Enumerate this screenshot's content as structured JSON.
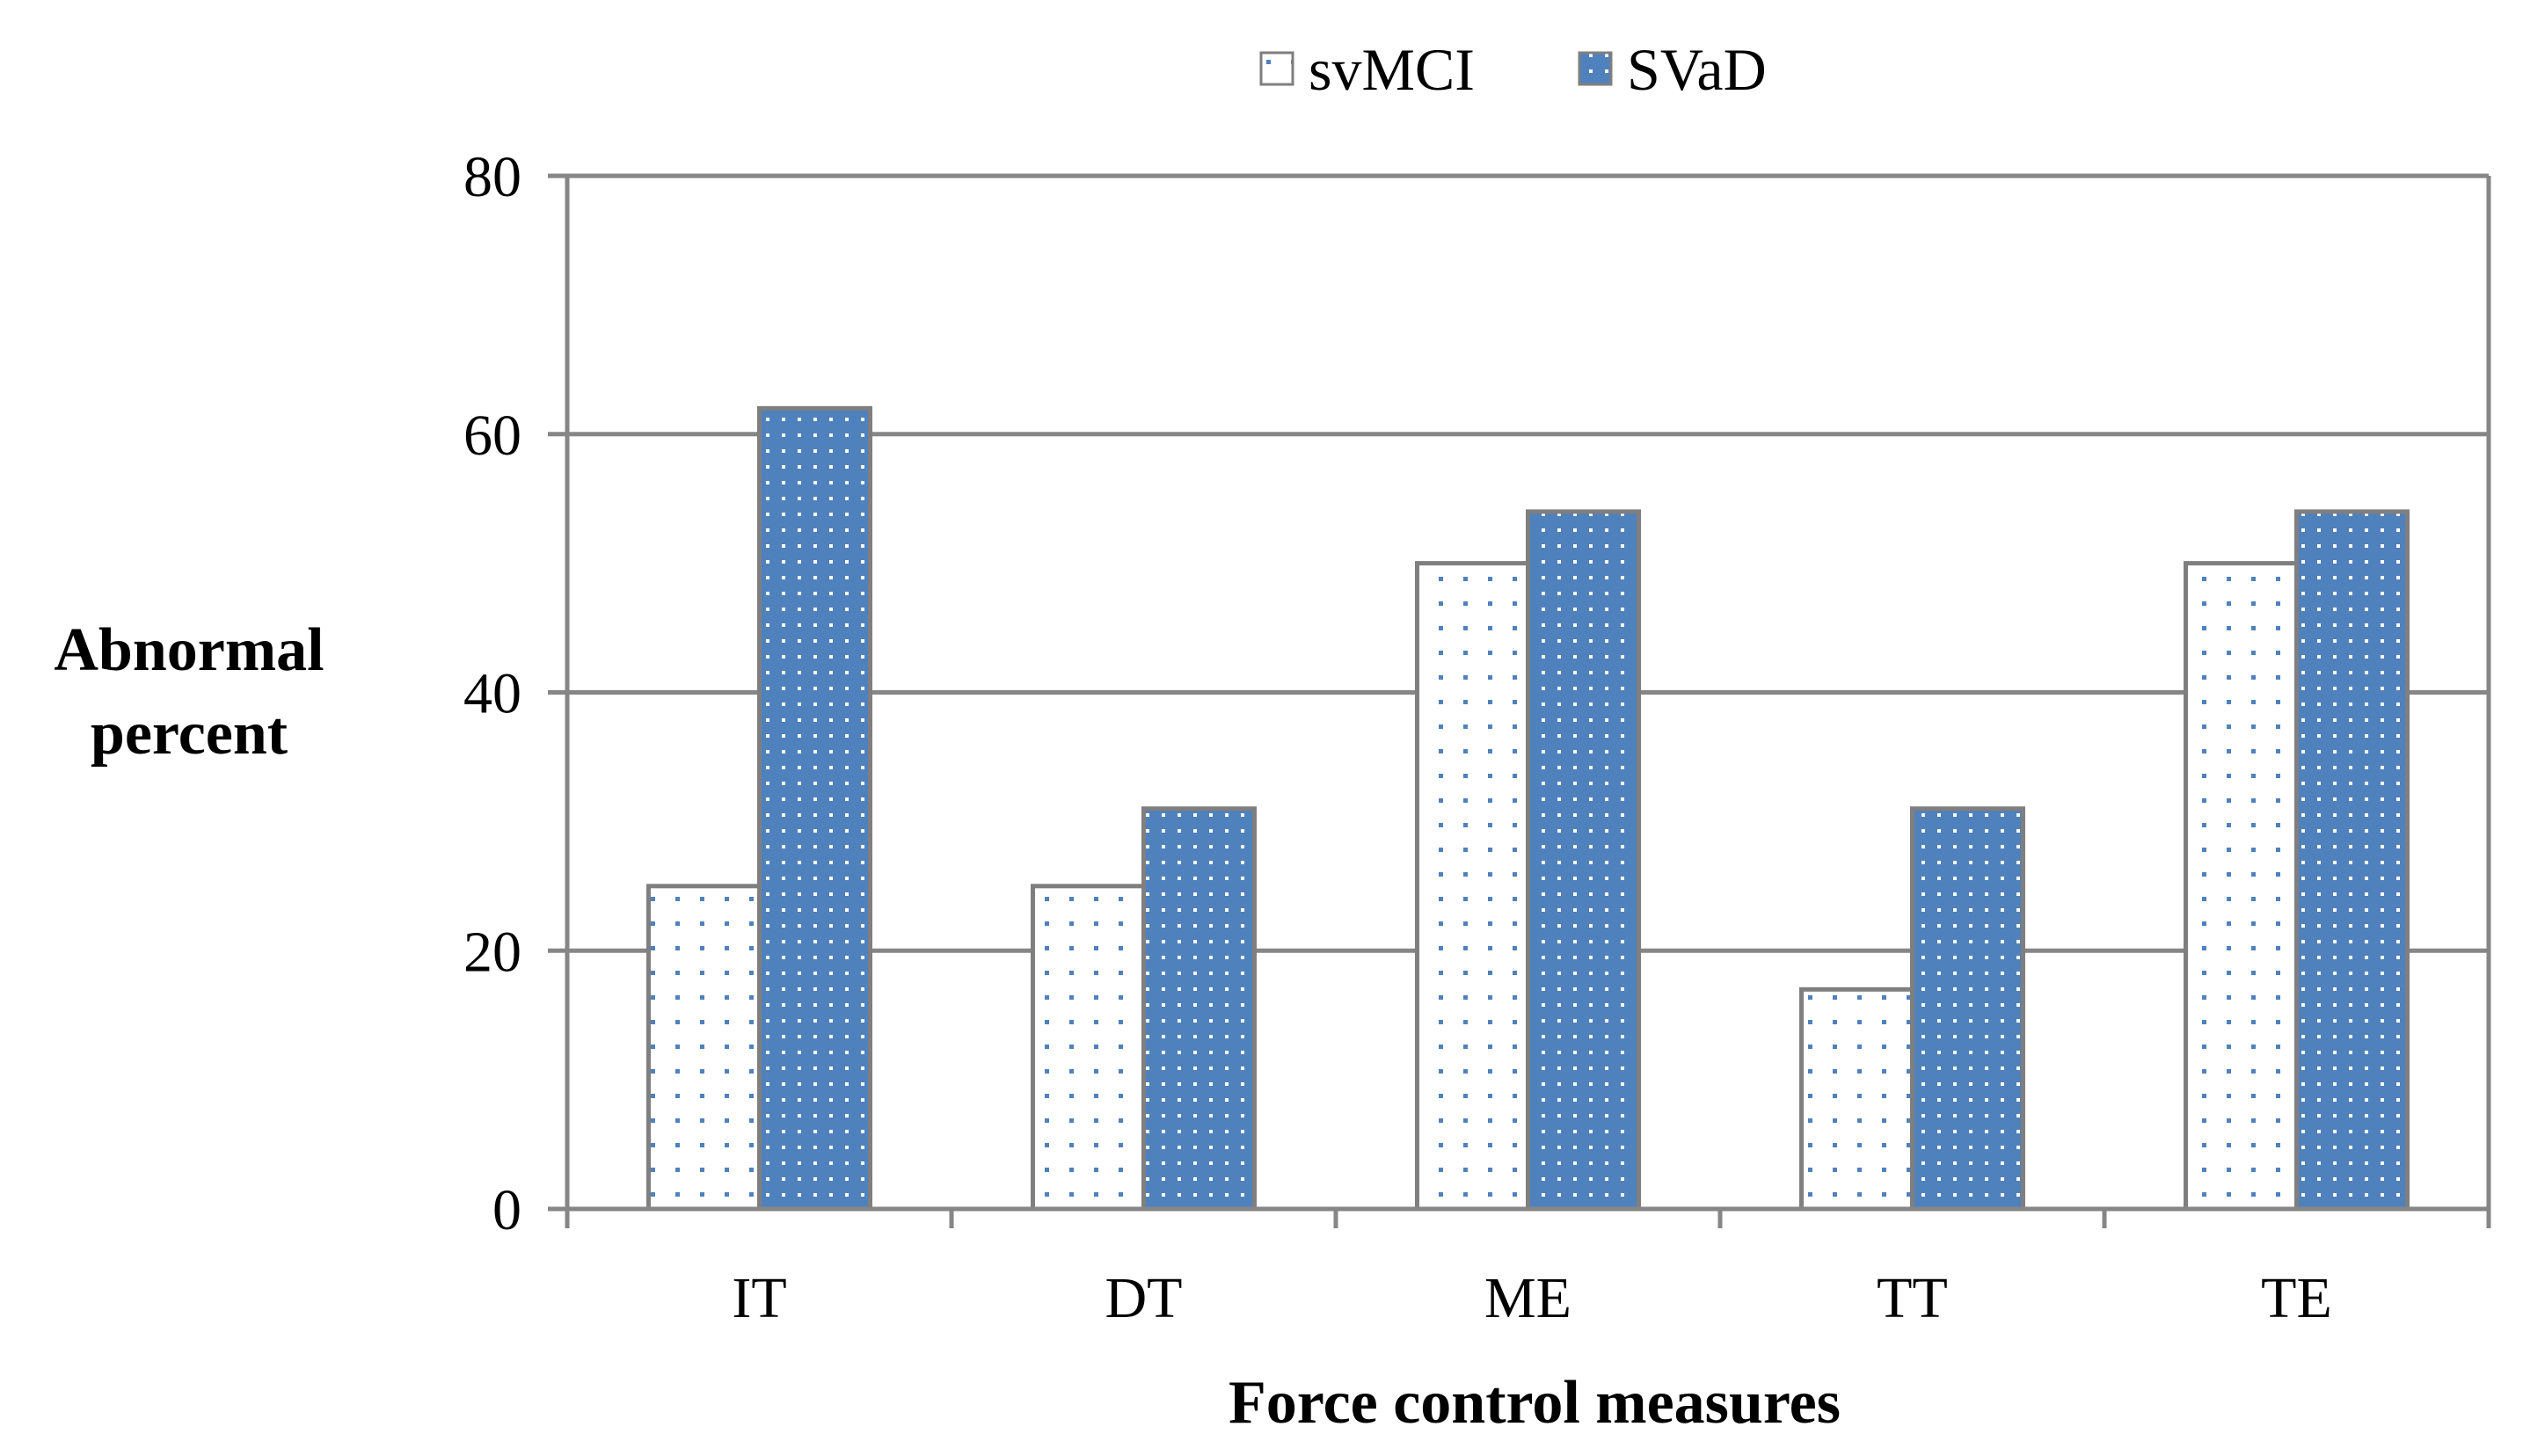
{
  "chart_data": {
    "type": "bar",
    "categories": [
      "IT",
      "DT",
      "ME",
      "TT",
      "TE"
    ],
    "series": [
      {
        "name": "svMCI",
        "values": [
          25,
          25,
          50,
          17,
          50
        ],
        "fill": "#ffffff",
        "dot": "#4f81bd"
      },
      {
        "name": "SVaD",
        "values": [
          62,
          31,
          54,
          31,
          54
        ],
        "fill": "#4f81bd",
        "dot": "#ffffff"
      }
    ],
    "title": "",
    "xlabel": "Force control measures",
    "ylabel": [
      "Abnormal",
      "percent"
    ],
    "ylim": [
      0,
      80
    ],
    "yticks": [
      0,
      20,
      40,
      60,
      80
    ],
    "grid": true,
    "legend": "top-center"
  },
  "colors": {
    "axis": "#868686",
    "grid": "#868686",
    "bar_border": "#7f7f7f"
  }
}
